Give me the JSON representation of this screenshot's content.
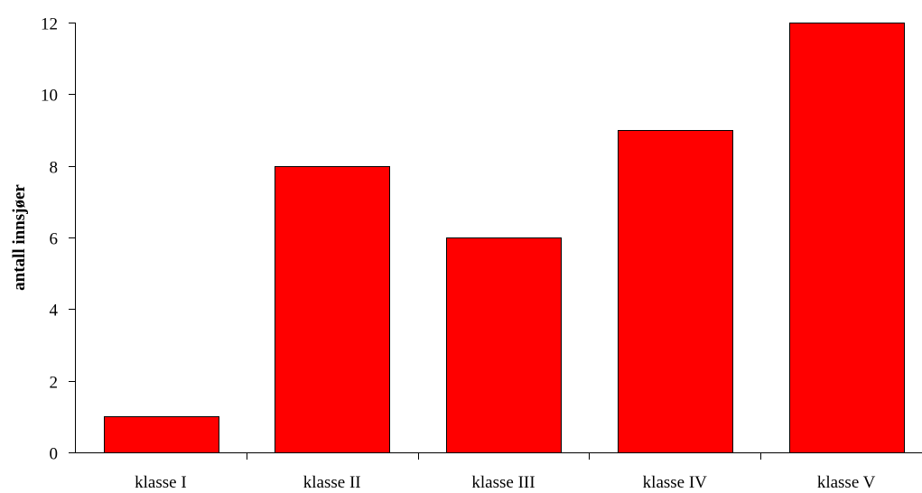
{
  "chart_data": {
    "type": "bar",
    "categories": [
      "klasse I",
      "klasse II",
      "klasse III",
      "klasse IV",
      "klasse V"
    ],
    "values": [
      1,
      8,
      6,
      9,
      12
    ],
    "title": "",
    "xlabel": "",
    "ylabel": "antall innsjøer",
    "ylim": [
      0,
      12
    ],
    "yticks": [
      0,
      2,
      4,
      6,
      8,
      10,
      12
    ],
    "grid": false,
    "bar_color": "#ff0000",
    "bar_edge_color": "#000000"
  }
}
